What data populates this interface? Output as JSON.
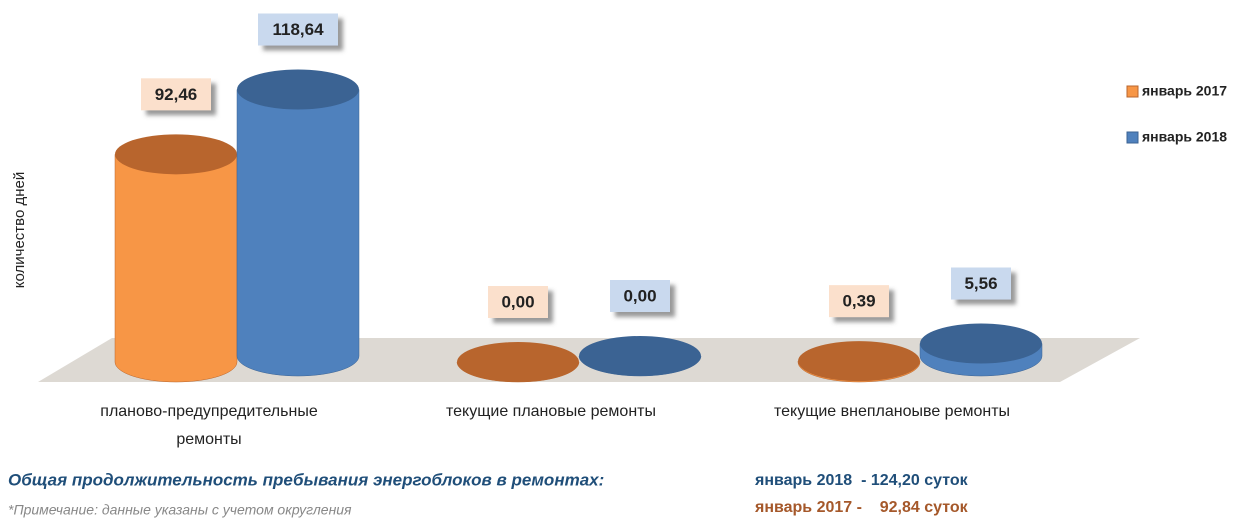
{
  "chart_data": {
    "type": "cylinder",
    "y_label": "количество дней",
    "categories": [
      "планово-предупредительные ремонты",
      "текущие плановые ремонты",
      "текущие внепланоыве ремонты"
    ],
    "series": [
      {
        "name": "январь 2017",
        "color": "#f79646",
        "top_color": "#b8652d",
        "label_bg": "#fbe0cc",
        "values": [
          92.46,
          0.0,
          0.39
        ],
        "value_labels": [
          "92,46",
          "0,00",
          "0,39"
        ]
      },
      {
        "name": "январь 2018",
        "color": "#4f81bd",
        "top_color": "#3b6393",
        "label_bg": "#c9d9ee",
        "values": [
          118.64,
          0.0,
          5.56
        ],
        "value_labels": [
          "118,64",
          "0,00",
          "5,56"
        ]
      }
    ],
    "ylim": [
      0,
      130
    ],
    "legend": "top-right",
    "summary": {
      "title": "Общая продолжительность пребывания энергоблоков в ремонтах:",
      "line_2018": "январь 2018  - 124,20 суток",
      "line_2017": "январь 2017 -    92,84 суток"
    },
    "note": "*Примечание: данные указаны с учетом округления"
  }
}
